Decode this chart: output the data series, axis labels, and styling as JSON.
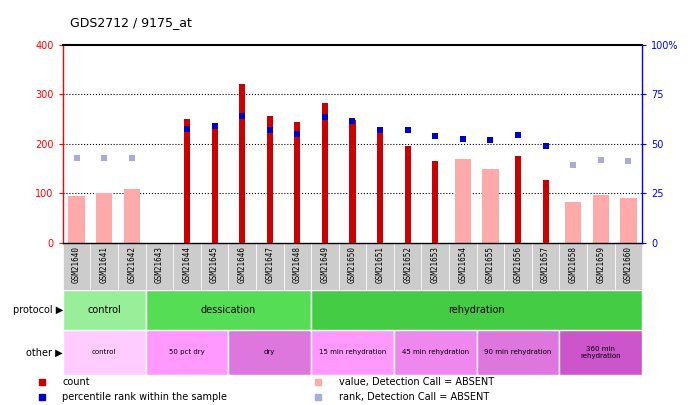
{
  "title": "GDS2712 / 9175_at",
  "samples": [
    "GSM21640",
    "GSM21641",
    "GSM21642",
    "GSM21643",
    "GSM21644",
    "GSM21645",
    "GSM21646",
    "GSM21647",
    "GSM21648",
    "GSM21649",
    "GSM21650",
    "GSM21651",
    "GSM21652",
    "GSM21653",
    "GSM21654",
    "GSM21655",
    "GSM21656",
    "GSM21657",
    "GSM21658",
    "GSM21659",
    "GSM21660"
  ],
  "count_values": [
    null,
    null,
    null,
    null,
    250,
    240,
    320,
    255,
    243,
    283,
    248,
    225,
    196,
    165,
    null,
    null,
    175,
    127,
    null,
    null,
    null
  ],
  "rank_values": [
    null,
    null,
    null,
    null,
    230,
    235,
    255,
    228,
    220,
    253,
    246,
    228,
    228,
    215,
    210,
    207,
    218,
    195,
    null,
    null,
    null
  ],
  "absent_count": [
    95,
    100,
    108,
    null,
    null,
    null,
    null,
    null,
    null,
    null,
    null,
    null,
    null,
    null,
    170,
    150,
    null,
    null,
    82,
    97,
    91
  ],
  "absent_rank": [
    172,
    172,
    172,
    null,
    null,
    null,
    null,
    null,
    null,
    null,
    null,
    null,
    null,
    null,
    null,
    null,
    null,
    null,
    158,
    168,
    165
  ],
  "protocol_groups": [
    {
      "label": "control",
      "start": 0,
      "end": 3,
      "color": "#99ee99"
    },
    {
      "label": "dessication",
      "start": 3,
      "end": 9,
      "color": "#55dd55"
    },
    {
      "label": "rehydration",
      "start": 9,
      "end": 21,
      "color": "#44cc44"
    }
  ],
  "other_groups": [
    {
      "label": "control",
      "start": 0,
      "end": 3,
      "color": "#ffccff"
    },
    {
      "label": "50 pct dry",
      "start": 3,
      "end": 6,
      "color": "#ff99ff"
    },
    {
      "label": "dry",
      "start": 6,
      "end": 9,
      "color": "#dd77dd"
    },
    {
      "label": "15 min rehydration",
      "start": 9,
      "end": 12,
      "color": "#ff99ff"
    },
    {
      "label": "45 min rehydration",
      "start": 12,
      "end": 15,
      "color": "#ee88ee"
    },
    {
      "label": "90 min rehydration",
      "start": 15,
      "end": 18,
      "color": "#dd77dd"
    },
    {
      "label": "360 min\nrehydration",
      "start": 18,
      "end": 21,
      "color": "#cc55cc"
    }
  ],
  "ylim_left": [
    0,
    400
  ],
  "ylim_right": [
    0,
    100
  ],
  "count_color": "#cc0000",
  "rank_color": "#0000cc",
  "absent_count_color": "#ffaaaa",
  "absent_rank_color": "#aaaadd",
  "chart_bg": "#ffffff",
  "xtick_bg": "#cccccc"
}
